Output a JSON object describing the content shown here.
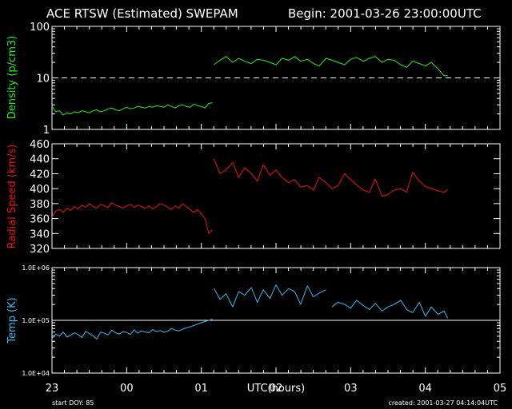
{
  "header": {
    "title": "ACE RTSW (Estimated) SWEPAM",
    "begin": "Begin: 2001-03-26 23:00:00UTC"
  },
  "footer": {
    "xlabel": "UTC(hours)",
    "start_doy": "start DOY:  85",
    "created": "created: 2001-03-27 04:14:04UTC"
  },
  "colors": {
    "background": "#000000",
    "axes": "#ffffff",
    "density": "#22ee22",
    "speed": "#ee1111",
    "temp": "#33bbee"
  },
  "chart_data": [
    {
      "type": "line",
      "title": "",
      "ylabel": "Density (p/cm3)",
      "yscale": "log",
      "ylim": [
        1,
        100
      ],
      "yticklabels": [
        "1",
        "10",
        "100"
      ],
      "reference_line": {
        "y": 10,
        "style": "dashed"
      },
      "xlim": [
        0,
        6
      ],
      "xticklabels": [
        "23",
        "00",
        "01",
        "02",
        "03",
        "04",
        "05"
      ],
      "series": [
        {
          "x": [
            0.0,
            0.05,
            0.1,
            0.15,
            0.2,
            0.25,
            0.3,
            0.35,
            0.4,
            0.45,
            0.5,
            0.55,
            0.6,
            0.65,
            0.7,
            0.75,
            0.8,
            0.85,
            0.9,
            0.95,
            1.0,
            1.05,
            1.1,
            1.15,
            1.2,
            1.25,
            1.3,
            1.35,
            1.4,
            1.45,
            1.5,
            1.55,
            1.6,
            1.65,
            1.7,
            1.75,
            1.8,
            1.85,
            1.9,
            1.95,
            2.0,
            2.05,
            2.1,
            2.15,
            null,
            2.17,
            2.25,
            2.33,
            2.42,
            2.5,
            2.58,
            2.67,
            2.75,
            2.83,
            2.92,
            3.0,
            3.08,
            3.17,
            3.25,
            3.33,
            3.42,
            3.5,
            3.58,
            3.67,
            3.75,
            3.83,
            3.92,
            4.0,
            4.08,
            4.17,
            4.25,
            4.33,
            4.42,
            4.5,
            4.58,
            4.67,
            4.75,
            4.83,
            4.92,
            5.0,
            5.08,
            5.17,
            5.25,
            5.3
          ],
          "y": [
            2.8,
            2.2,
            2.3,
            1.9,
            2.1,
            2.0,
            2.2,
            2.1,
            2.3,
            2.2,
            2.1,
            2.3,
            2.4,
            2.2,
            2.3,
            2.5,
            2.6,
            2.4,
            2.3,
            2.5,
            2.7,
            2.5,
            2.6,
            2.8,
            2.7,
            2.6,
            2.8,
            2.7,
            2.9,
            2.8,
            2.7,
            3.0,
            2.8,
            2.6,
            2.9,
            3.0,
            2.8,
            2.7,
            3.1,
            2.9,
            2.8,
            2.6,
            3.2,
            3.3,
            null,
            18,
            22,
            26,
            20,
            24,
            21,
            19,
            23,
            22,
            20,
            18,
            24,
            22,
            26,
            21,
            23,
            19,
            17,
            24,
            22,
            20,
            18,
            23,
            25,
            21,
            24,
            26,
            20,
            23,
            22,
            18,
            16,
            21,
            19,
            17,
            20,
            15,
            11,
            11
          ]
        }
      ]
    },
    {
      "type": "line",
      "title": "",
      "ylabel": "Radial Speed (km/s)",
      "ylim": [
        320,
        460
      ],
      "yticks": [
        320,
        340,
        360,
        380,
        400,
        420,
        440,
        460
      ],
      "xlim": [
        0,
        6
      ],
      "xticklabels": [
        "23",
        "00",
        "01",
        "02",
        "03",
        "04",
        "05"
      ],
      "series": [
        {
          "x": [
            0.0,
            0.05,
            0.1,
            0.15,
            0.2,
            0.25,
            0.3,
            0.35,
            0.4,
            0.45,
            0.5,
            0.55,
            0.6,
            0.65,
            0.7,
            0.75,
            0.8,
            0.85,
            0.9,
            0.95,
            1.0,
            1.05,
            1.1,
            1.15,
            1.2,
            1.25,
            1.3,
            1.35,
            1.4,
            1.45,
            1.5,
            1.55,
            1.6,
            1.65,
            1.7,
            1.75,
            1.8,
            1.85,
            1.9,
            1.95,
            2.0,
            2.05,
            2.1,
            2.15,
            null,
            2.17,
            2.25,
            2.33,
            2.42,
            2.5,
            2.58,
            2.67,
            2.75,
            2.83,
            2.92,
            3.0,
            3.08,
            3.17,
            3.25,
            3.33,
            3.42,
            3.5,
            3.58,
            3.67,
            3.75,
            3.83,
            3.92,
            4.0,
            4.08,
            4.17,
            4.25,
            4.33,
            4.42,
            4.5,
            4.58,
            4.67,
            4.75,
            4.83,
            4.92,
            5.0,
            5.08,
            5.17,
            5.25,
            5.3
          ],
          "y": [
            362,
            370,
            372,
            368,
            374,
            371,
            376,
            373,
            378,
            375,
            380,
            376,
            374,
            379,
            377,
            375,
            381,
            378,
            376,
            374,
            377,
            379,
            375,
            378,
            376,
            374,
            377,
            373,
            376,
            380,
            378,
            375,
            372,
            377,
            374,
            380,
            376,
            372,
            368,
            372,
            366,
            360,
            340,
            345,
            null,
            440,
            420,
            425,
            435,
            415,
            428,
            420,
            410,
            432,
            418,
            425,
            415,
            408,
            412,
            402,
            404,
            398,
            415,
            408,
            400,
            404,
            420,
            412,
            405,
            398,
            395,
            413,
            390,
            392,
            398,
            400,
            395,
            422,
            410,
            403,
            400,
            397,
            395,
            399
          ]
        }
      ]
    },
    {
      "type": "line",
      "title": "",
      "ylabel": "Temp (K)",
      "yscale": "log",
      "ylim": [
        10000,
        1000000
      ],
      "yticklabels": [
        "1.0E+04",
        "1.0E+05",
        "1.0E+06"
      ],
      "reference_line": {
        "y": 100000,
        "style": "solid"
      },
      "xlim": [
        0,
        6
      ],
      "xticklabels": [
        "23",
        "00",
        "01",
        "02",
        "03",
        "04",
        "05"
      ],
      "series": [
        {
          "x": [
            0.0,
            0.05,
            0.1,
            0.15,
            0.2,
            0.25,
            0.3,
            0.35,
            0.4,
            0.45,
            0.5,
            0.55,
            0.6,
            0.65,
            0.7,
            0.75,
            0.8,
            0.85,
            0.9,
            0.95,
            1.0,
            1.05,
            1.1,
            1.15,
            1.2,
            1.25,
            1.3,
            1.35,
            1.4,
            1.45,
            1.5,
            1.55,
            1.6,
            1.65,
            1.7,
            1.75,
            1.8,
            1.85,
            1.9,
            1.95,
            2.0,
            2.05,
            2.1,
            2.15,
            null,
            2.17,
            2.25,
            2.33,
            2.42,
            2.5,
            2.58,
            2.67,
            2.75,
            2.83,
            2.92,
            3.0,
            3.08,
            3.17,
            3.25,
            3.33,
            3.42,
            3.5,
            3.58,
            3.67,
            null,
            3.75,
            3.83,
            3.92,
            4.0,
            4.08,
            4.17,
            4.25,
            4.33,
            4.42,
            4.5,
            4.58,
            4.67,
            4.75,
            4.83,
            4.92,
            5.0,
            5.08,
            5.17,
            5.25,
            5.3
          ],
          "y": [
            45000,
            55000,
            50000,
            60000,
            48000,
            52000,
            58000,
            54000,
            47000,
            62000,
            56000,
            51000,
            44000,
            60000,
            57000,
            53000,
            65000,
            58000,
            55000,
            61000,
            59000,
            54000,
            66000,
            57000,
            63000,
            60000,
            58000,
            67000,
            61000,
            64000,
            59000,
            62000,
            70000,
            65000,
            63000,
            68000,
            72000,
            75000,
            80000,
            85000,
            90000,
            95000,
            100000,
            105000,
            null,
            400000,
            250000,
            320000,
            180000,
            350000,
            300000,
            420000,
            220000,
            380000,
            260000,
            470000,
            300000,
            400000,
            350000,
            200000,
            450000,
            280000,
            330000,
            380000,
            null,
            180000,
            220000,
            200000,
            170000,
            240000,
            190000,
            160000,
            210000,
            150000,
            180000,
            200000,
            240000,
            160000,
            140000,
            220000,
            120000,
            180000,
            130000,
            150000,
            110000
          ]
        }
      ]
    }
  ]
}
